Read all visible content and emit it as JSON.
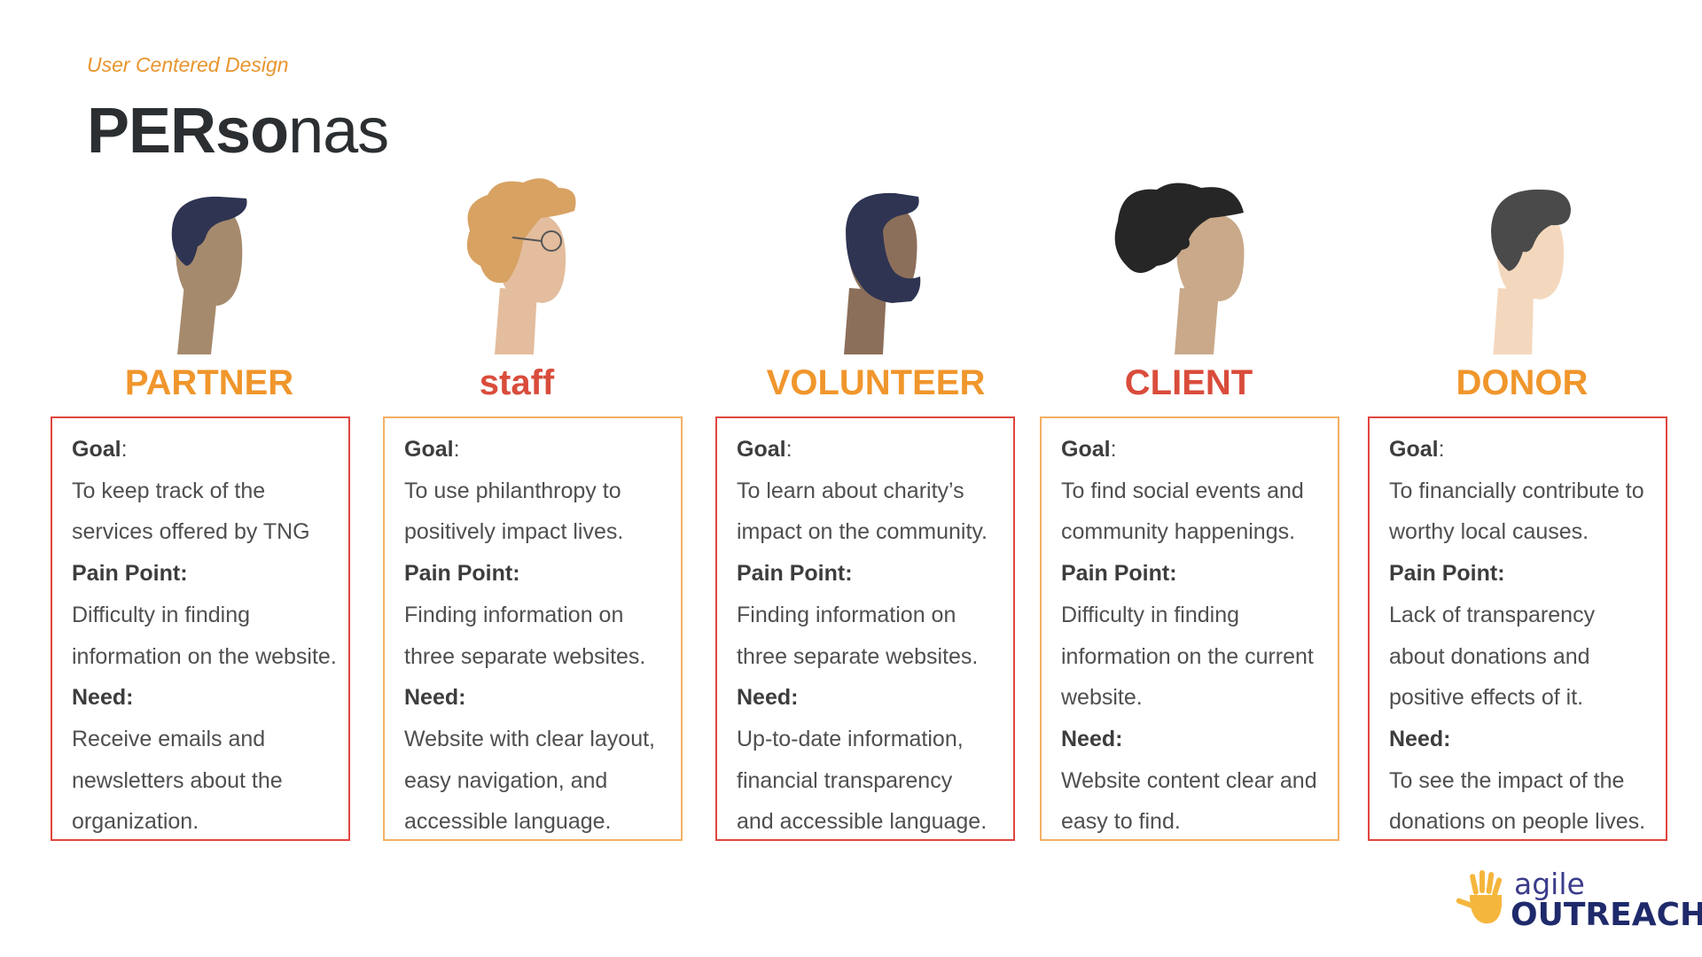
{
  "header": {
    "subtitle": "User Centered Design",
    "title_bold": "PERso",
    "title_light": "nas"
  },
  "colors": {
    "orange": "#f0962c",
    "red": "#d94c3b"
  },
  "personas": [
    {
      "name": "PARTNER",
      "name_color": "orange",
      "avatar_icon": "man-short-hair-icon",
      "goal_label": "Goal",
      "goal_colon": ":",
      "goal": "To keep track of the\nservices offered by TNG",
      "pain_label": "Pain Point:",
      "pain": "Difficulty in finding\ninformation on the website.",
      "need_label": "Need:",
      "need": "Receive emails and\nnewsletters about the\norganization."
    },
    {
      "name": "staff",
      "name_color": "red",
      "avatar_icon": "curly-hair-glasses-icon",
      "goal_label": "Goal",
      "goal_colon": ":",
      "goal": "To use philanthropy to\npositively impact lives.",
      "pain_label": "Pain Point:",
      "pain": "Finding information on\nthree separate websites.",
      "need_label": "Need:",
      "need": "Website with clear layout,\neasy navigation, and\naccessible language."
    },
    {
      "name": "VOLUNTEER",
      "name_color": "orange",
      "avatar_icon": "bearded-man-icon",
      "goal_label": "Goal",
      "goal_colon": ":",
      "goal": "To learn about charity’s\nimpact on the community.",
      "pain_label": "Pain Point:",
      "pain": "Finding information on\nthree separate websites.",
      "need_label": "Need:",
      "need": "Up-to-date information,\nfinancial transparency\nand accessible language."
    },
    {
      "name": "CLIENT",
      "name_color": "red",
      "avatar_icon": "woman-curly-hair-icon",
      "goal_label": "Goal",
      "goal_colon": ":",
      "goal": "To find social events and\ncommunity happenings.",
      "pain_label": "Pain Point:",
      "pain": "Difficulty in finding\ninformation on the current\nwebsite.",
      "need_label": "Need:",
      "need": "Website content clear and\neasy to find."
    },
    {
      "name": "DONOR",
      "name_color": "orange",
      "avatar_icon": "man-swept-hair-icon",
      "goal_label": "Goal",
      "goal_colon": ":",
      "goal": "To financially contribute to\nworthy local causes.",
      "pain_label": "Pain Point:",
      "pain": "Lack of transparency\nabout donations and\npositive effects of it.",
      "need_label": "Need:",
      "need": "To see the impact of the\ndonations on people lives."
    }
  ],
  "logo": {
    "line1": "agile",
    "line2": "OUTREACH",
    "icon": "hand-icon"
  }
}
